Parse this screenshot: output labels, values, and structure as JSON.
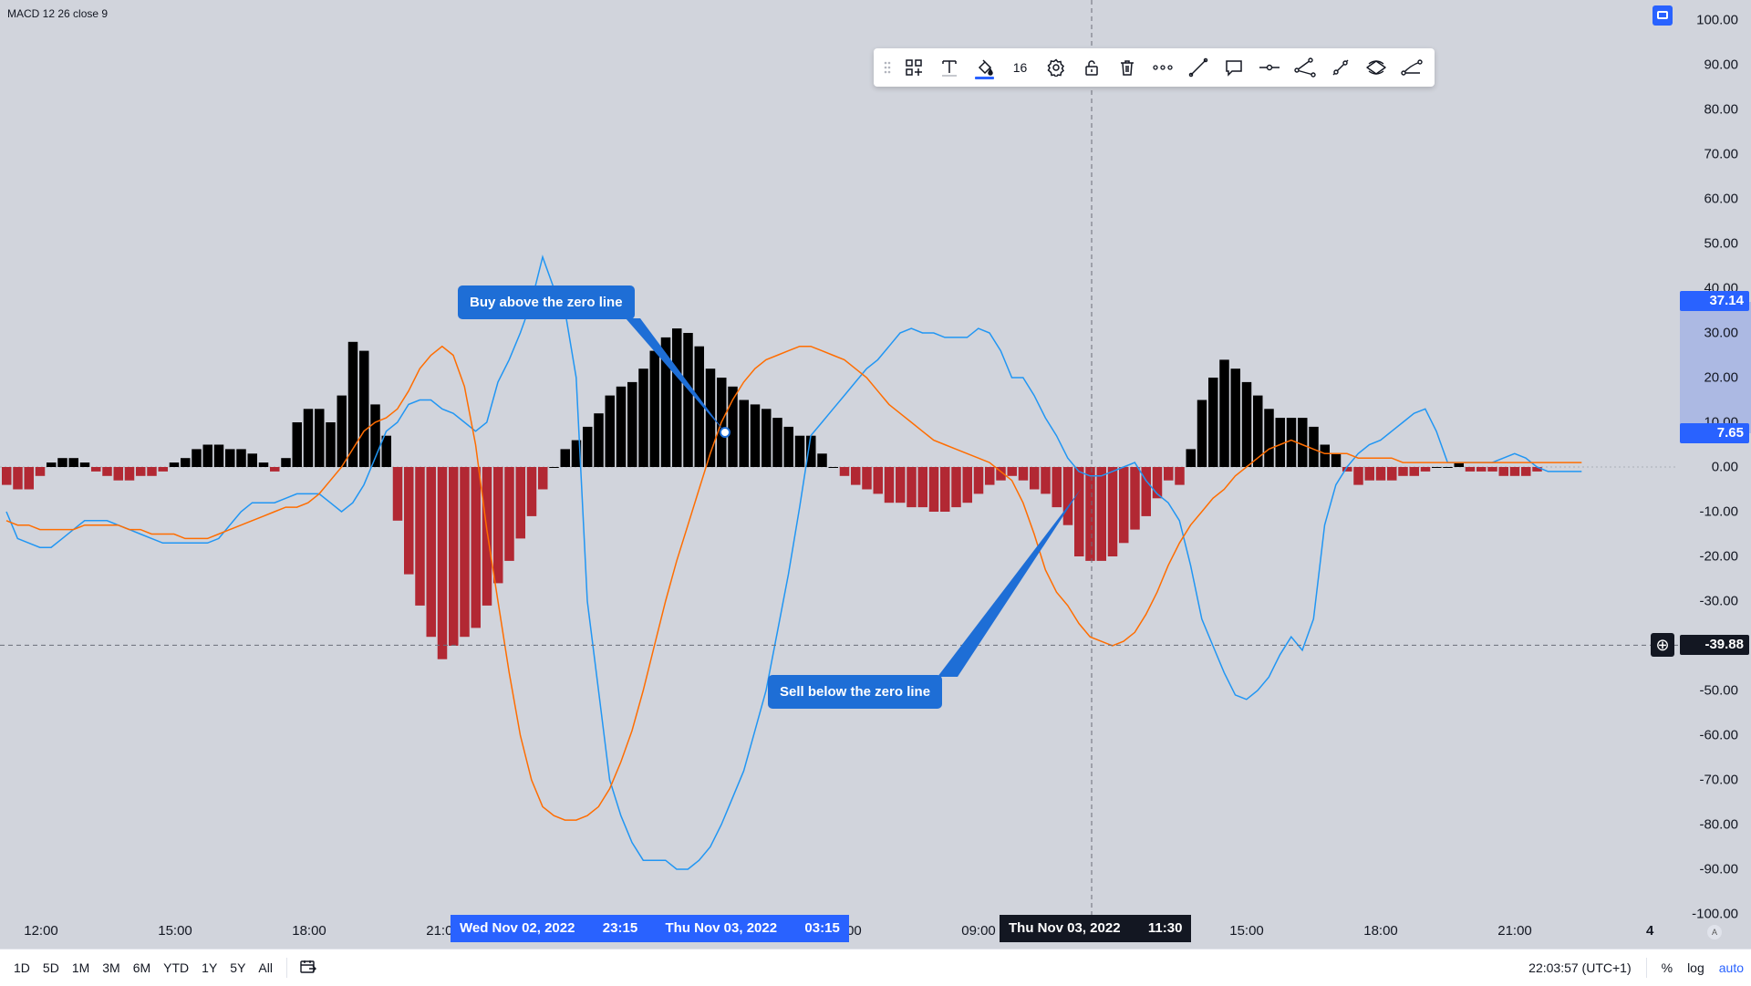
{
  "indicator": {
    "title": "MACD 12 26 close 9"
  },
  "price_axis": {
    "ticks": [
      "100.00",
      "90.00",
      "80.00",
      "70.00",
      "60.00",
      "50.00",
      "40.00",
      "30.00",
      "20.00",
      "10.00",
      "0.00",
      "-10.00",
      "-20.00",
      "-30.00",
      "-40.00",
      "-50.00",
      "-60.00",
      "-70.00",
      "-80.00",
      "-90.00",
      "-100.00"
    ],
    "label_macd": "37.14",
    "label_signal": "7.65",
    "label_crosshair": "-39.88",
    "crosshair_add_icon": "plus-circle-icon"
  },
  "time_axis": {
    "ticks": [
      "12:00",
      "15:00",
      "18:00",
      "21:00",
      "06:00",
      "09:00",
      "15:00",
      "18:00",
      "21:00"
    ],
    "range_start_date": "Wed Nov 02, 2022",
    "range_start_time": "23:15",
    "range_end_date": "Thu Nov 03, 2022",
    "range_end_time": "03:15",
    "crosshair_date": "Thu Nov 03, 2022",
    "crosshair_time": "11:30",
    "scale_label": "4",
    "mode_chip": "A"
  },
  "toolbar": {
    "font_size_value": "16",
    "icons": [
      "drag-handle-icon",
      "templates-icon",
      "text-icon",
      "fill-color-icon",
      "settings-icon",
      "lock-icon",
      "trash-icon",
      "more-icon",
      "trend-line-icon",
      "comment-icon",
      "horizontal-ray-icon",
      "path-icon",
      "info-line-icon",
      "ellipse-icon",
      "curve-icon"
    ]
  },
  "annotations": {
    "buy": "Buy above the zero line",
    "sell": "Sell below the zero line"
  },
  "bottom_bar": {
    "ranges": [
      "1D",
      "5D",
      "1M",
      "3M",
      "6M",
      "YTD",
      "1Y",
      "5Y",
      "All"
    ],
    "goto_icon": "calendar-goto-icon",
    "clock": "22:03:57 (UTC+1)",
    "percent": "%",
    "log": "log",
    "auto": "auto"
  },
  "colors": {
    "background": "#d1d4dc",
    "macd_line": "#2196f3",
    "signal_line": "#ff6d00",
    "hist_positive": "#000000",
    "hist_negative": "#b22833",
    "accent": "#2962ff",
    "callout": "#1e6ed6"
  },
  "chart_data": {
    "type": "line",
    "title": "MACD 12 26 close 9",
    "xlabel": "",
    "ylabel": "",
    "ylim": [
      -100,
      100
    ],
    "grid": false,
    "x_ticks": [
      "12:00",
      "15:00",
      "18:00",
      "21:00",
      "06:00",
      "09:00",
      "15:00",
      "18:00",
      "21:00"
    ],
    "n_bars": 140,
    "histogram": [
      -4,
      -5,
      -5,
      -2,
      1,
      2,
      2,
      1,
      -1,
      -2,
      -3,
      -3,
      -2,
      -2,
      -1,
      1,
      2,
      4,
      5,
      5,
      4,
      4,
      3,
      1,
      -1,
      2,
      10,
      13,
      13,
      10,
      16,
      28,
      26,
      14,
      7,
      -12,
      -24,
      -31,
      -38,
      -43,
      -40,
      -38,
      -36,
      -31,
      -26,
      -21,
      -16,
      -11,
      -5,
      0,
      4,
      6,
      9,
      12,
      16,
      18,
      19,
      22,
      26,
      29,
      31,
      30,
      27,
      22,
      20,
      18,
      15,
      14,
      13,
      11,
      9,
      7,
      7,
      3,
      0,
      -2,
      -4,
      -5,
      -6,
      -8,
      -8,
      -9,
      -9,
      -10,
      -10,
      -9,
      -8,
      -6,
      -4,
      -3,
      -2,
      -3,
      -5,
      -6,
      -9,
      -13,
      -20,
      -21,
      -21,
      -20,
      -17,
      -14,
      -11,
      -7,
      -3,
      -4,
      4,
      15,
      20,
      24,
      22,
      19,
      16,
      13,
      11,
      11,
      11,
      9,
      5,
      3,
      -1,
      -4,
      -3,
      -3,
      -3,
      -2,
      -2,
      -1,
      0,
      0,
      1,
      -1,
      -1,
      -1,
      -2,
      -2,
      -2,
      -1
    ],
    "series": [
      {
        "name": "MACD",
        "values": [
          -10,
          -16,
          -17,
          -18,
          -18,
          -16,
          -14,
          -12,
          -12,
          -12,
          -13,
          -14,
          -15,
          -16,
          -17,
          -17,
          -17,
          -17,
          -17,
          -16,
          -13,
          -10,
          -8,
          -8,
          -8,
          -7,
          -6,
          -6,
          -6,
          -8,
          -10,
          -8,
          -4,
          2,
          8,
          10,
          14,
          15,
          15,
          13,
          12,
          10,
          8,
          10,
          19,
          24,
          30,
          37,
          47,
          40,
          35,
          20,
          -30,
          -50,
          -70,
          -78,
          -84,
          -88,
          -88,
          -88,
          -90,
          -90,
          -88,
          -85,
          -80,
          -74,
          -68,
          -59,
          -50,
          -37,
          -24,
          -9,
          7,
          10,
          13,
          16,
          19,
          22,
          24,
          27,
          30,
          31,
          30,
          30,
          29,
          29,
          29,
          31,
          30,
          26,
          20,
          20,
          16,
          11,
          7,
          2,
          -1,
          -2,
          -2,
          -1,
          0,
          1,
          -3,
          -6,
          -8,
          -12,
          -22,
          -34,
          -40,
          -46,
          -51,
          -52,
          -50,
          -47,
          -42,
          -38,
          -41,
          -34,
          -13,
          -4,
          0,
          3,
          5,
          6,
          8,
          10,
          12,
          13,
          8,
          1,
          1,
          1,
          1,
          1,
          2,
          3,
          2,
          0,
          -1,
          -1,
          -1,
          -1
        ]
      },
      {
        "name": "Signal",
        "values": [
          -12,
          -13,
          -13,
          -14,
          -14,
          -14,
          -14,
          -13,
          -13,
          -13,
          -13,
          -14,
          -14,
          -15,
          -15,
          -15,
          -16,
          -16,
          -16,
          -15,
          -14,
          -13,
          -12,
          -11,
          -10,
          -9,
          -9,
          -8,
          -6,
          -3,
          0,
          4,
          8,
          10,
          11,
          13,
          17,
          22,
          25,
          27,
          25,
          18,
          5,
          -14,
          -30,
          -46,
          -60,
          -70,
          -76,
          -78,
          -79,
          -79,
          -78,
          -76,
          -72,
          -66,
          -59,
          -50,
          -40,
          -30,
          -21,
          -13,
          -5,
          3,
          10,
          15,
          19,
          22,
          24,
          25,
          26,
          27,
          27,
          26,
          25,
          24,
          22,
          20,
          17,
          14,
          12,
          10,
          8,
          6,
          5,
          4,
          3,
          2,
          1,
          -1,
          -3,
          -8,
          -15,
          -23,
          -28,
          -31,
          -35,
          -38,
          -39,
          -40,
          -39,
          -37,
          -33,
          -28,
          -22,
          -17,
          -13,
          -10,
          -7,
          -5,
          -2,
          0,
          2,
          4,
          5,
          6,
          5,
          4,
          3,
          3,
          3,
          2,
          2,
          2,
          2,
          1,
          1,
          1,
          1,
          1,
          1,
          1,
          1,
          1,
          1,
          1,
          1,
          1,
          1,
          1,
          1,
          1
        ]
      }
    ],
    "price_labels": {
      "macd": 37.14,
      "signal": 7.65,
      "crosshair": -39.88
    },
    "crosshair": {
      "time": "Thu Nov 03, 2022 11:30",
      "value": -39.88
    }
  }
}
